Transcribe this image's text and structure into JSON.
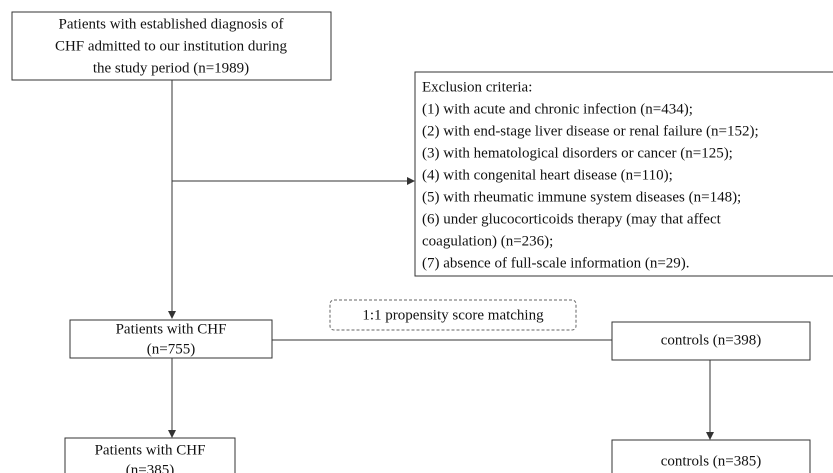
{
  "nodes": [
    {
      "lines": [
        "Patients with established diagnosis of",
        "CHF admitted to our institution during",
        "the study period (n=1989)"
      ]
    },
    {
      "lines": [
        "Exclusion criteria:",
        "(1) with acute and chronic infection (n=434);",
        "(2) with end-stage liver disease or renal failure (n=152);",
        "(3) with hematological disorders or cancer (n=125);",
        "(4) with congenital heart disease (n=110);",
        "(5) with rheumatic immune system diseases (n=148);",
        "(6) under glucocorticoids therapy (may  that affect",
        "coagulation) (n=236);",
        "(7) absence of full-scale information (n=29)."
      ]
    },
    {
      "lines": [
        "Patients with CHF",
        "(n=755)"
      ]
    },
    {
      "lines": [
        "1:1 propensity score matching"
      ]
    },
    {
      "lines": [
        "controls (n=398)"
      ]
    },
    {
      "lines": [
        "Patients with CHF",
        "(n=385)"
      ]
    },
    {
      "lines": [
        "controls (n=385)"
      ]
    }
  ]
}
